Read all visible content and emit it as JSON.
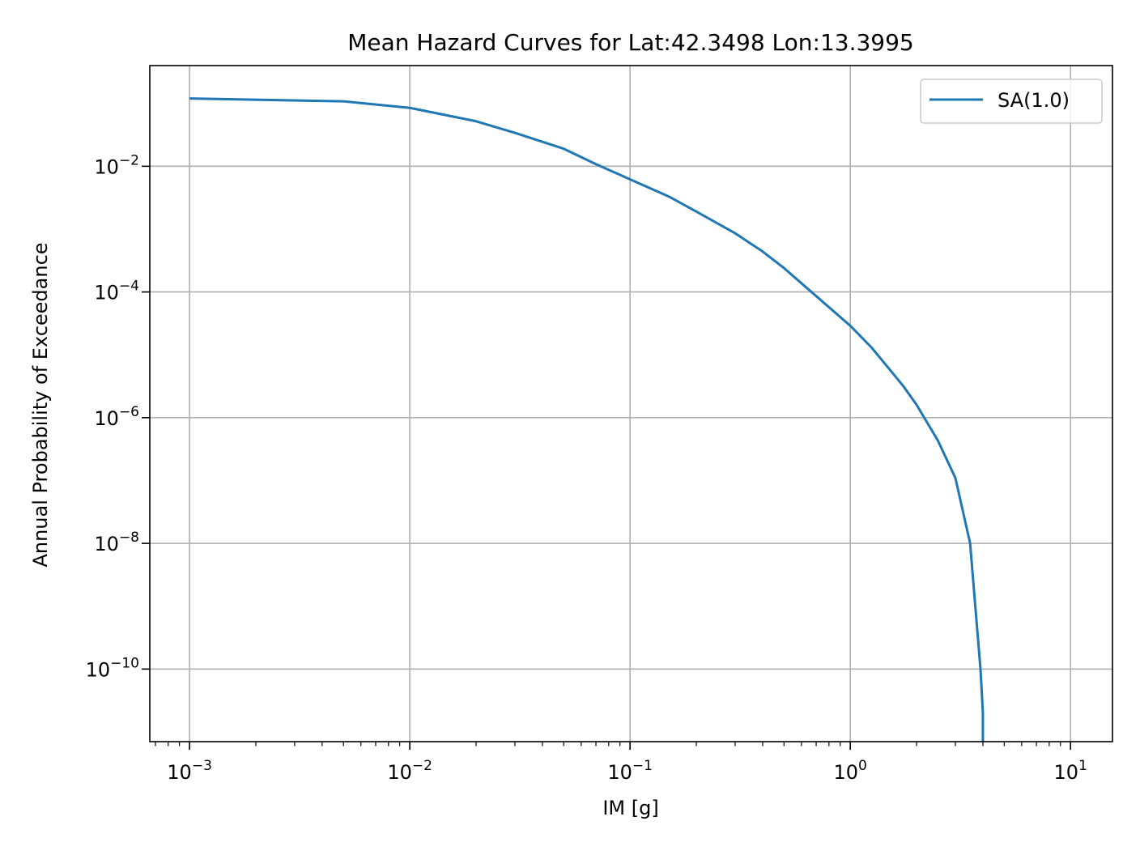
{
  "chart_data": {
    "type": "line",
    "title": "Mean Hazard Curves for Lat:42.3498 Lon:13.3995",
    "xlabel": "IM [g]",
    "ylabel": "Annual Probability of Exceedance",
    "xscale": "log",
    "yscale": "log",
    "xlim": [
      0.00066,
      15.5
    ],
    "ylim": [
      7e-12,
      0.4
    ],
    "grid": true,
    "legend_position": "top-right",
    "x_ticks": [
      {
        "value": 0.001,
        "base": "10",
        "exp": "−3"
      },
      {
        "value": 0.01,
        "base": "10",
        "exp": "−2"
      },
      {
        "value": 0.1,
        "base": "10",
        "exp": "−1"
      },
      {
        "value": 1,
        "base": "10",
        "exp": "0"
      },
      {
        "value": 10,
        "base": "10",
        "exp": "1"
      }
    ],
    "y_ticks": [
      {
        "value": 0.01,
        "base": "10",
        "exp": "−2"
      },
      {
        "value": 0.0001,
        "base": "10",
        "exp": "−4"
      },
      {
        "value": 1e-06,
        "base": "10",
        "exp": "−6"
      },
      {
        "value": 1e-08,
        "base": "10",
        "exp": "−8"
      },
      {
        "value": 1e-10,
        "base": "10",
        "exp": "−10"
      }
    ],
    "series": [
      {
        "name": "SA(1.0)",
        "color": "#1f77b4",
        "x": [
          0.001,
          0.005,
          0.01,
          0.02,
          0.03,
          0.05,
          0.07,
          0.1,
          0.15,
          0.2,
          0.3,
          0.4,
          0.5,
          0.7,
          1.0,
          1.25,
          1.5,
          1.75,
          2.0,
          2.5,
          3.0,
          3.5,
          3.9,
          4.0,
          4.0
        ],
        "y": [
          0.12,
          0.108,
          0.085,
          0.052,
          0.034,
          0.019,
          0.0108,
          0.0062,
          0.0033,
          0.0019,
          0.00086,
          0.00044,
          0.00024,
          8.6e-05,
          2.9e-05,
          1.3e-05,
          6e-06,
          3.1e-06,
          1.6e-06,
          4.3e-07,
          1.1e-07,
          1e-08,
          1e-10,
          2e-11,
          7e-12
        ]
      }
    ]
  }
}
